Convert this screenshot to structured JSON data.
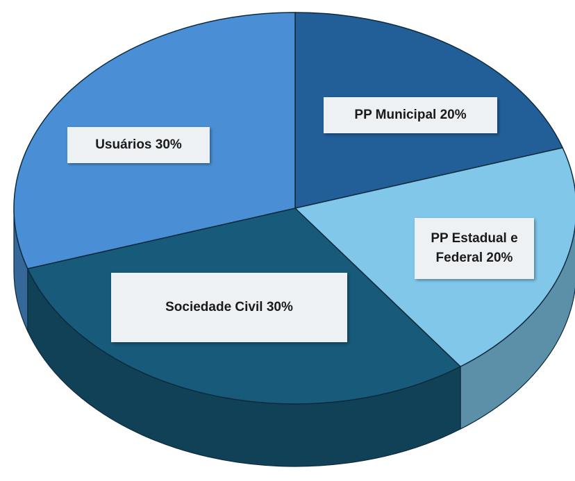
{
  "chart_data": {
    "type": "pie3d",
    "categories": [
      "PP Municipal",
      "PP Estadual e Federal",
      "Sociedade Civil",
      "Usuários"
    ],
    "values": [
      20,
      20,
      30,
      30
    ],
    "value_labels": [
      "20%",
      "20%",
      "30%",
      "30%"
    ],
    "colors": [
      "#225e98",
      "#80c7e9",
      "#185a79",
      "#4a8fd5"
    ]
  }
}
